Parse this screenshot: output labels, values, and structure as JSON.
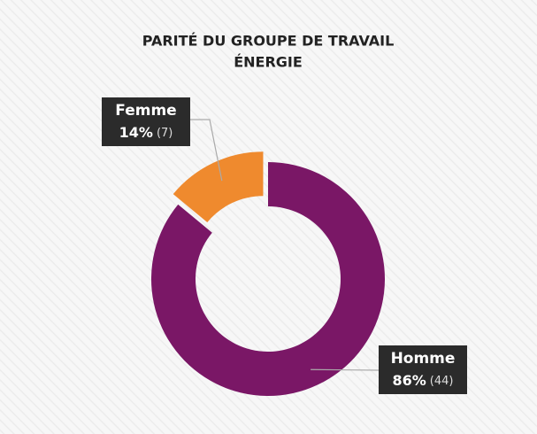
{
  "chart_data": {
    "type": "donut",
    "title_lines": [
      "PARITÉ DU GROUPE DE TRAVAIL",
      "ÉNERGIE"
    ],
    "categories": [
      "Homme",
      "Femme"
    ],
    "values": [
      86,
      14
    ],
    "value_labels": [
      "86%",
      "14%"
    ],
    "counts": [
      44,
      7
    ],
    "count_labels": [
      "(44)",
      "(7)"
    ],
    "colors": [
      "#7a1766",
      "#ef8a2e"
    ]
  }
}
